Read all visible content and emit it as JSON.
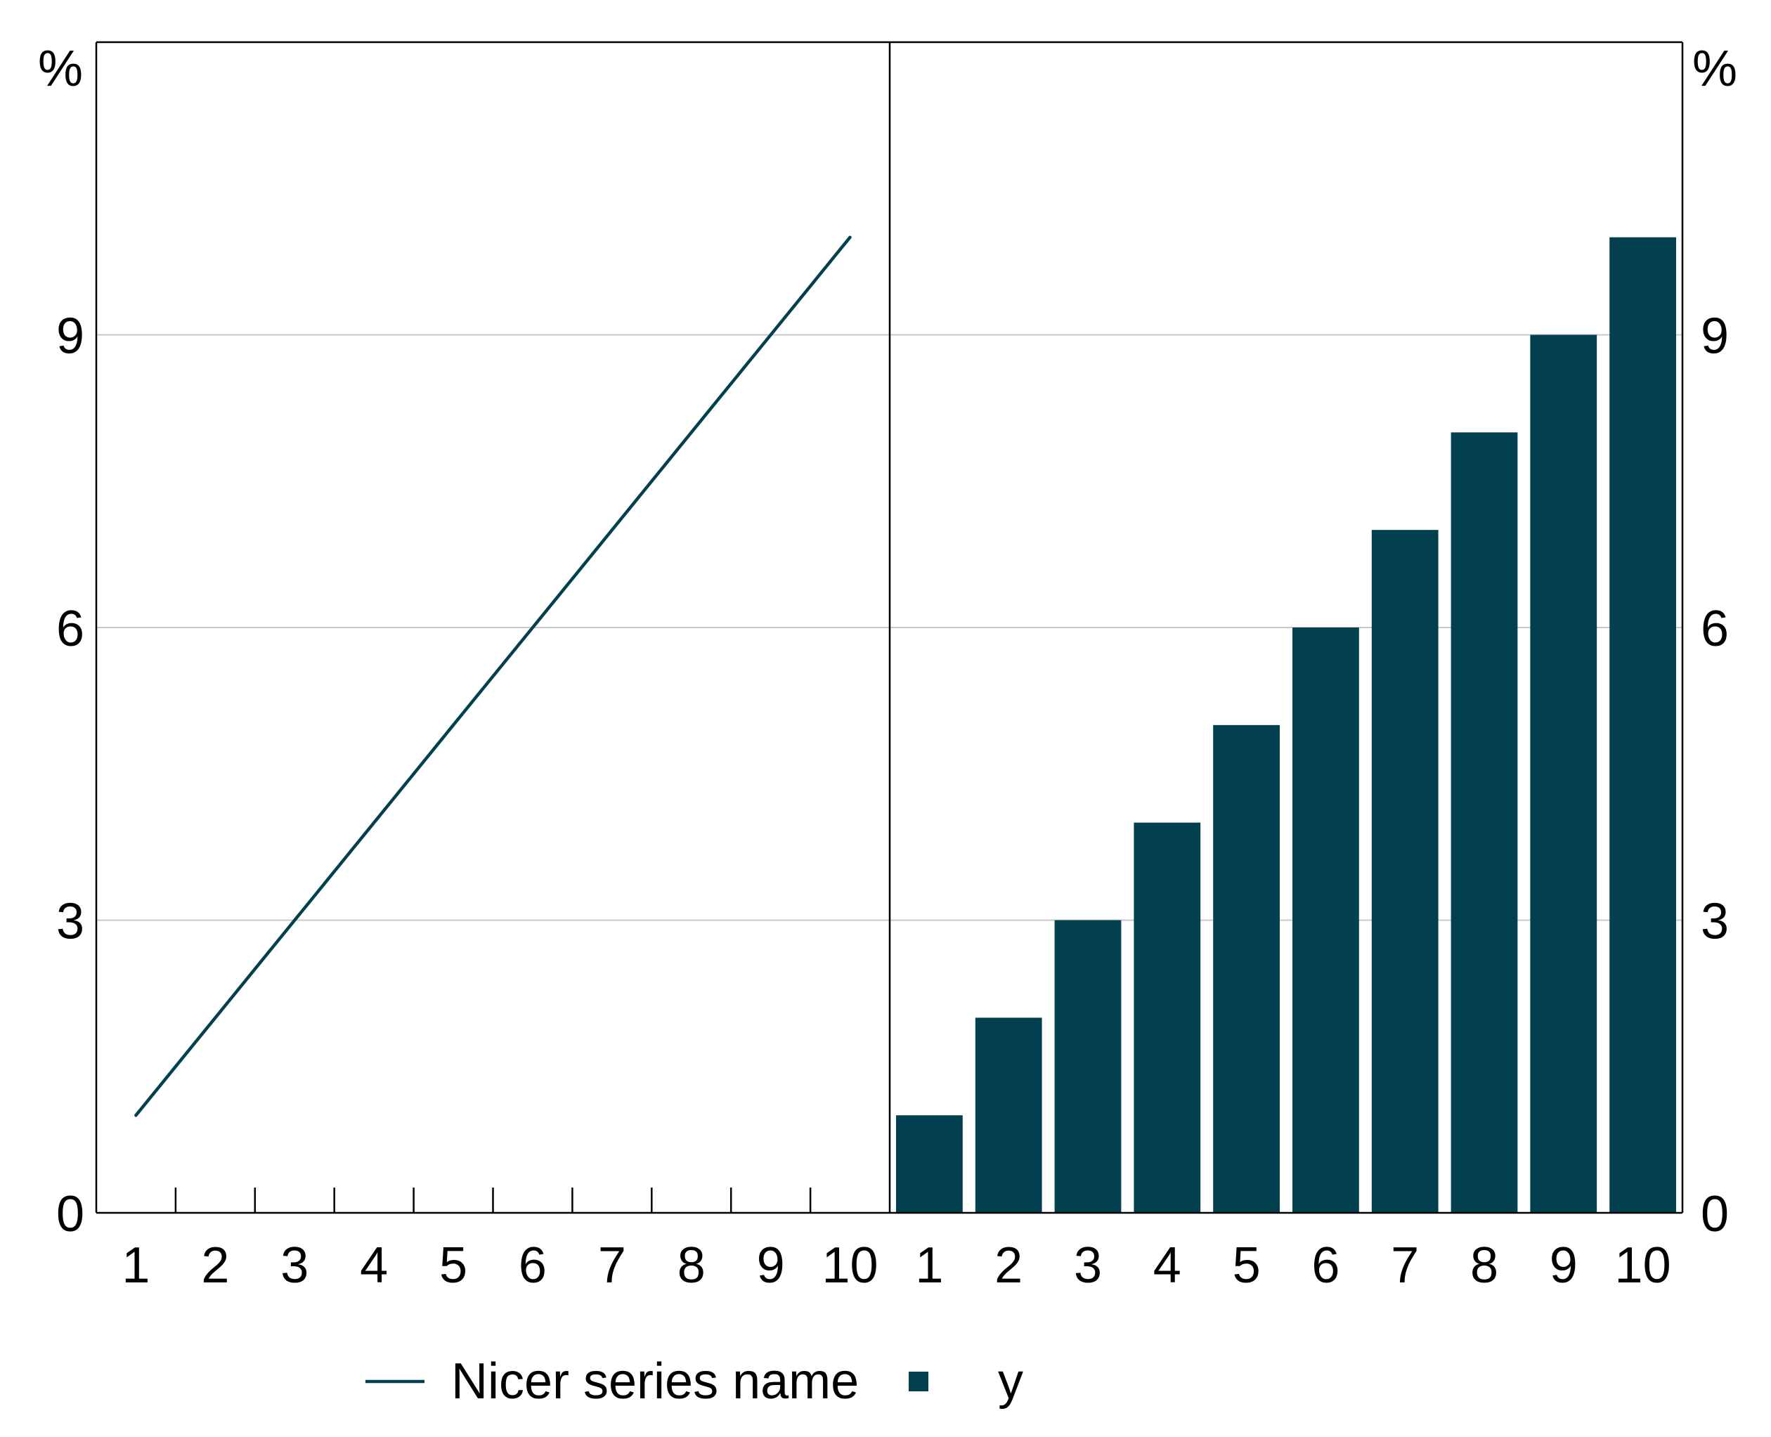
{
  "colors": {
    "series": "#023f4f",
    "grid": "#c8c8c8",
    "axis": "#000000",
    "background": "#ffffff"
  },
  "chart_data": [
    {
      "type": "line",
      "panel": "left",
      "x": [
        1,
        2,
        3,
        4,
        5,
        6,
        7,
        8,
        9,
        10
      ],
      "series": [
        {
          "name": "Nicer series name",
          "values": [
            1,
            2,
            3,
            4,
            5,
            6,
            7,
            8,
            9,
            10
          ]
        }
      ],
      "y_unit": "%",
      "ylim": [
        0,
        12
      ],
      "yticks": [
        "0",
        "3",
        "6",
        "9"
      ],
      "xticks": [
        "1",
        "2",
        "3",
        "4",
        "5",
        "6",
        "7",
        "8",
        "9",
        "10"
      ],
      "grid": true
    },
    {
      "type": "bar",
      "panel": "right",
      "categories": [
        "1",
        "2",
        "3",
        "4",
        "5",
        "6",
        "7",
        "8",
        "9",
        "10"
      ],
      "series": [
        {
          "name": "y",
          "values": [
            1,
            2,
            3,
            4,
            5,
            6,
            7,
            8,
            9,
            10
          ]
        }
      ],
      "y_unit": "%",
      "ylim": [
        0,
        12
      ],
      "yticks": [
        "0",
        "3",
        "6",
        "9"
      ],
      "grid": true
    }
  ],
  "legend": {
    "placement": "bottom",
    "items": [
      {
        "label": "Nicer series name",
        "marker": "line"
      },
      {
        "label": "y",
        "marker": "square"
      }
    ]
  }
}
